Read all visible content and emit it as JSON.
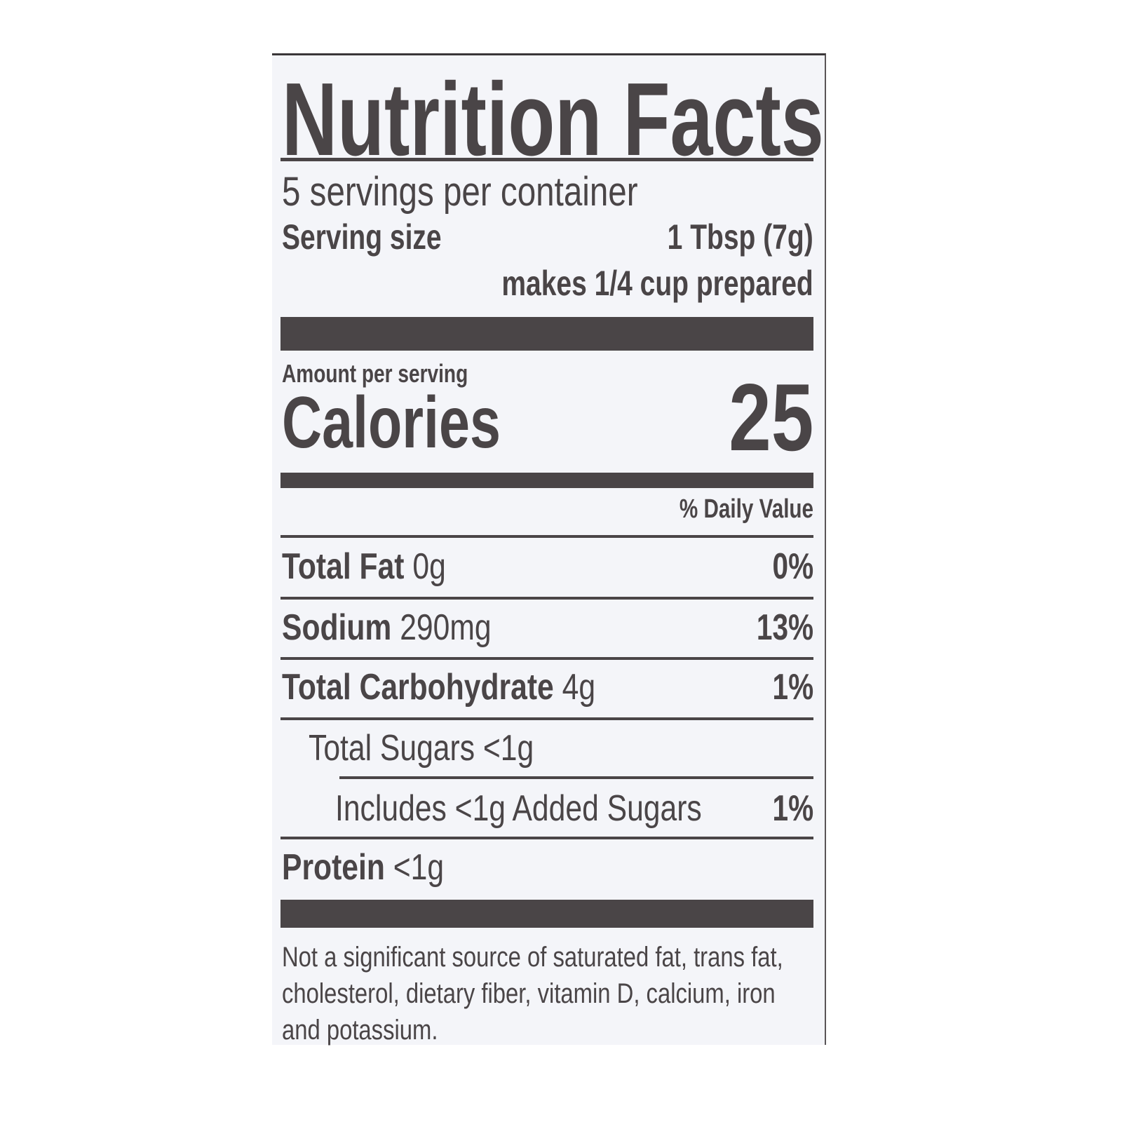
{
  "label": {
    "title": "Nutrition Facts",
    "servings_per_container": "5 servings per container",
    "serving_size_label": "Serving size",
    "serving_size_value": "1 Tbsp (7g)",
    "serving_note": "makes 1/4 cup prepared",
    "amount_per_serving": "Amount per serving",
    "calories_label": "Calories",
    "calories_value": "25",
    "daily_value_header": "% Daily Value",
    "nutrients": [
      {
        "name": "Total Fat",
        "amount": "0g",
        "dv": "0%"
      },
      {
        "name": "Sodium",
        "amount": "290mg",
        "dv": "13%"
      },
      {
        "name": "Total Carbohydrate",
        "amount": "4g",
        "dv": "1%"
      },
      {
        "name": "Total Sugars <1g",
        "amount": "",
        "dv": ""
      },
      {
        "name": "Includes <1g Added Sugars",
        "amount": "",
        "dv": "1%"
      },
      {
        "name": "Protein",
        "amount": "<1g",
        "dv": ""
      }
    ],
    "footnote": [
      "Not a significant source of saturated fat, trans fat,",
      "cholesterol, dietary fiber, vitamin D, calcium, iron",
      "and potassium."
    ],
    "colors": {
      "ink": "#4a4547",
      "background": "#f4f5f9"
    }
  }
}
